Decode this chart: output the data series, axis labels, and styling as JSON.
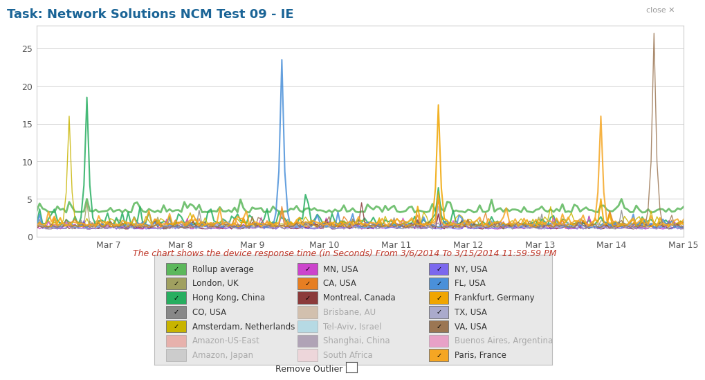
{
  "title": "Task: Network Solutions NCM Test 09 - IE",
  "subtitle": "The chart shows the device response time (in Seconds) From 3/6/2014 To 3/15/2014 11:59:59 PM",
  "close_text": "close ✕",
  "remove_outlier_text": "Remove Outlier",
  "x_ticks": [
    "Mar 7",
    "Mar 8",
    "Mar 9",
    "Mar 10",
    "Mar 11",
    "Mar 12",
    "Mar 13",
    "Mar 14",
    "Mar 15"
  ],
  "y_ticks": [
    0,
    5,
    10,
    15,
    20,
    25
  ],
  "ylim": [
    0,
    28
  ],
  "background_color": "#ffffff",
  "plot_bg_color": "#ffffff",
  "grid_color": "#d0d0d0",
  "title_color": "#1a6496",
  "subtitle_color": "#c0392b",
  "legend_bg": "#e8e8e8",
  "legend_border": "#cccccc",
  "series": {
    "Rollup average": {
      "color": "#5cb85c",
      "lw": 2.0,
      "active": true
    },
    "London, UK": {
      "color": "#a0a060",
      "lw": 1.0,
      "active": true
    },
    "Hong Kong, China": {
      "color": "#27ae60",
      "lw": 1.5,
      "active": true
    },
    "CO, USA": {
      "color": "#888888",
      "lw": 1.0,
      "active": true
    },
    "Amsterdam, Netherlands": {
      "color": "#c8b400",
      "lw": 1.0,
      "active": true
    },
    "Amazon-US-East": {
      "color": "#e74c3c",
      "lw": 1.0,
      "active": false
    },
    "Amazon, Japan": {
      "color": "#999999",
      "lw": 1.0,
      "active": false
    },
    "MN, USA": {
      "color": "#cc44cc",
      "lw": 1.0,
      "active": true
    },
    "CA, USA": {
      "color": "#e67e22",
      "lw": 1.0,
      "active": true
    },
    "Montreal, Canada": {
      "color": "#8B3A3A",
      "lw": 1.0,
      "active": true
    },
    "Brisbane, AU": {
      "color": "#aa7744",
      "lw": 1.0,
      "active": false
    },
    "Tel-Aviv, Israel": {
      "color": "#5bc0de",
      "lw": 1.0,
      "active": false
    },
    "Shanghai, China": {
      "color": "#4a235a",
      "lw": 1.0,
      "active": false
    },
    "South Africa": {
      "color": "#f7b6c2",
      "lw": 1.0,
      "active": false
    },
    "NY, USA": {
      "color": "#7b68ee",
      "lw": 1.0,
      "active": true
    },
    "FL, USA": {
      "color": "#4a90d9",
      "lw": 1.5,
      "active": true
    },
    "Frankfurt, Germany": {
      "color": "#f0a500",
      "lw": 1.5,
      "active": true
    },
    "TX, USA": {
      "color": "#aaaacc",
      "lw": 1.0,
      "active": true
    },
    "VA, USA": {
      "color": "#9B7653",
      "lw": 1.0,
      "active": true
    },
    "Buenos Aires, Argentina": {
      "color": "#e91e8c",
      "lw": 1.0,
      "active": false
    },
    "Paris, France": {
      "color": "#f5a623",
      "lw": 1.5,
      "active": true
    }
  },
  "legend_items": [
    [
      "Rollup average",
      "MN, USA",
      "NY, USA"
    ],
    [
      "London, UK",
      "CA, USA",
      "FL, USA"
    ],
    [
      "Hong Kong, China",
      "Montreal, Canada",
      "Frankfurt, Germany"
    ],
    [
      "CO, USA",
      "Brisbane, AU",
      "TX, USA"
    ],
    [
      "Amsterdam, Netherlands",
      "Tel-Aviv, Israel",
      "VA, USA"
    ],
    [
      "Amazon-US-East",
      "Shanghai, China",
      "Buenos Aires, Argentina"
    ],
    [
      "Amazon, Japan",
      "South Africa",
      "Paris, France"
    ]
  ]
}
